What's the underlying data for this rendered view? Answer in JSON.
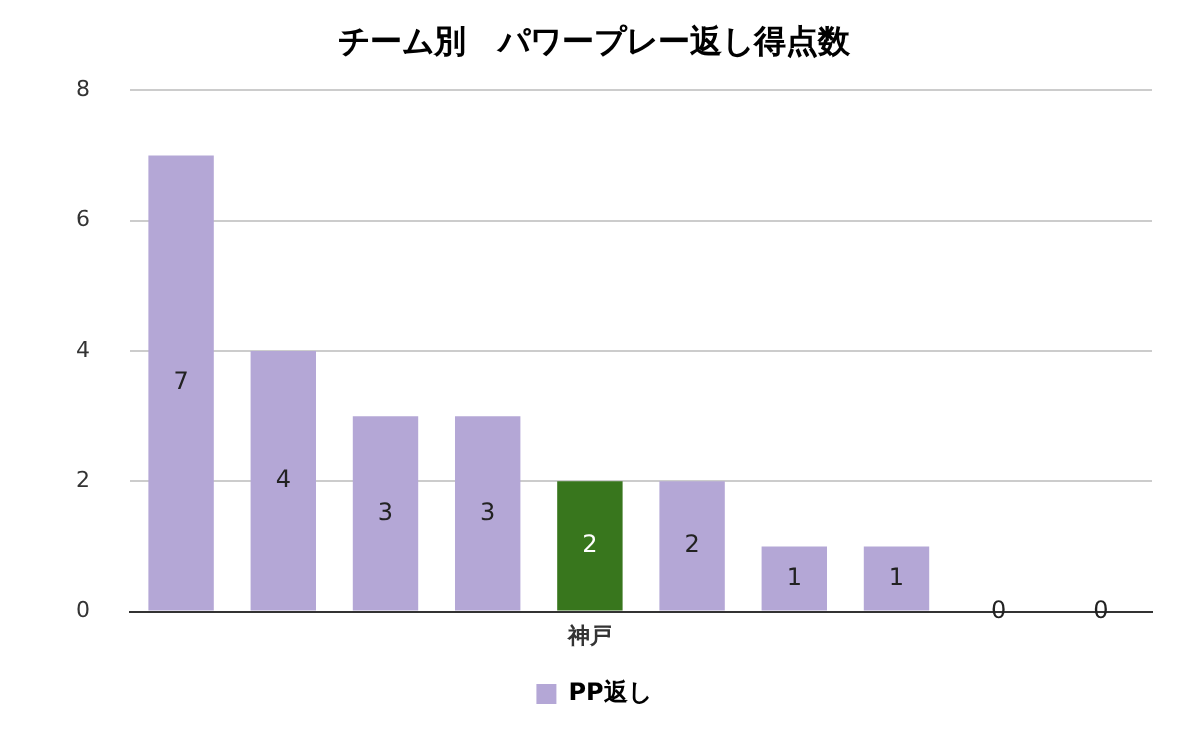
{
  "chart_data": {
    "type": "bar",
    "title": "チーム別　パワープレー返し得点数",
    "categories": [
      null,
      null,
      null,
      null,
      "神戸",
      null,
      null,
      null,
      null,
      null
    ],
    "series": [
      {
        "name": "PP返し",
        "color": "#b4a7d6",
        "colors": [
          "#b4a7d6",
          "#b4a7d6",
          "#b4a7d6",
          "#b4a7d6",
          "#38761d",
          "#b4a7d6",
          "#b4a7d6",
          "#b4a7d6",
          "#b4a7d6",
          "#b4a7d6"
        ],
        "values": [
          7,
          4,
          3,
          3,
          2,
          2,
          1,
          1,
          0,
          0
        ]
      }
    ],
    "ylim": [
      0,
      8
    ],
    "yticks": [
      0,
      2,
      4,
      6,
      8
    ],
    "grid": "y",
    "legend": "bottom",
    "data_labels": true
  }
}
